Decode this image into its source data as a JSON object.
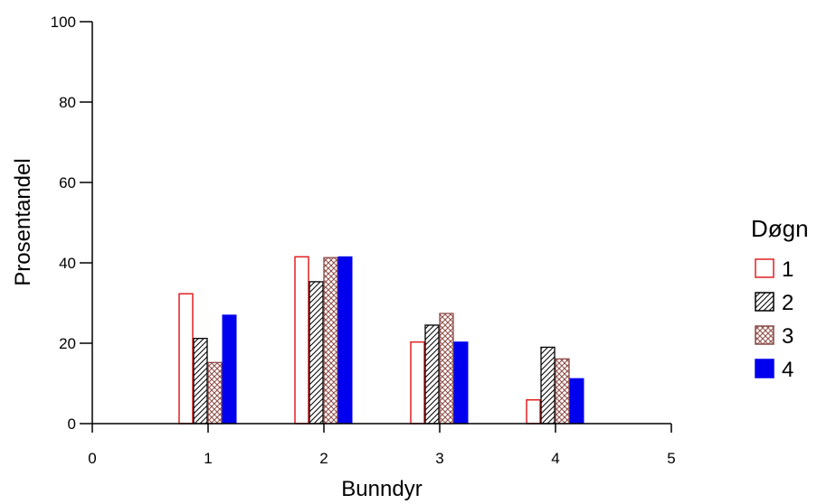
{
  "chart_data": {
    "type": "bar",
    "xlabel": "Bunndyr",
    "ylabel": "Prosentandel",
    "xlim": [
      0,
      5
    ],
    "ylim": [
      0,
      100
    ],
    "x_ticks": [
      "0",
      "1",
      "2",
      "3",
      "4",
      "5"
    ],
    "y_ticks": [
      "0",
      "20",
      "40",
      "60",
      "80",
      "100"
    ],
    "categories": [
      "1",
      "2",
      "3",
      "4"
    ],
    "grid": false,
    "legend": {
      "title": "Døgn",
      "placement": "right"
    },
    "series": [
      {
        "name": "1",
        "style": "hollow",
        "color": "#e02020",
        "values": [
          32.3,
          41.5,
          20.3,
          5.9
        ]
      },
      {
        "name": "2",
        "style": "diagonal-hatch",
        "color": "#000000",
        "values": [
          21.2,
          35.3,
          24.5,
          19.0
        ]
      },
      {
        "name": "3",
        "style": "cross-hatch",
        "color": "#8b4a44",
        "values": [
          15.2,
          41.3,
          27.4,
          16.1
        ]
      },
      {
        "name": "4",
        "style": "solid",
        "color": "#0000ee",
        "values": [
          27.0,
          41.5,
          20.3,
          11.2
        ]
      }
    ]
  }
}
